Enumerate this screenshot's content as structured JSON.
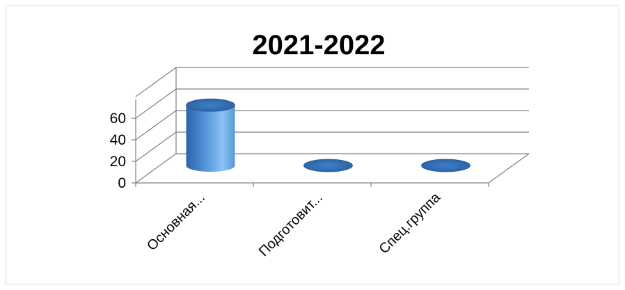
{
  "chart_data": {
    "type": "bar",
    "style": "3d-cylinder",
    "title": "2021-2022",
    "categories": [
      "Основная...",
      "Подготовит...",
      "Спец.группа"
    ],
    "series": [
      {
        "values": [
          56,
          0,
          0
        ]
      }
    ],
    "yticks": [
      "0",
      "20",
      "40",
      "60"
    ],
    "ylim": [
      0,
      80
    ],
    "grid": true,
    "legend": "none",
    "colors": {
      "bar_main": "#4f8fd6",
      "bar_light": "#8cc2f5",
      "bar_dark": "#2c64a8",
      "top": "#2f6db3"
    }
  }
}
